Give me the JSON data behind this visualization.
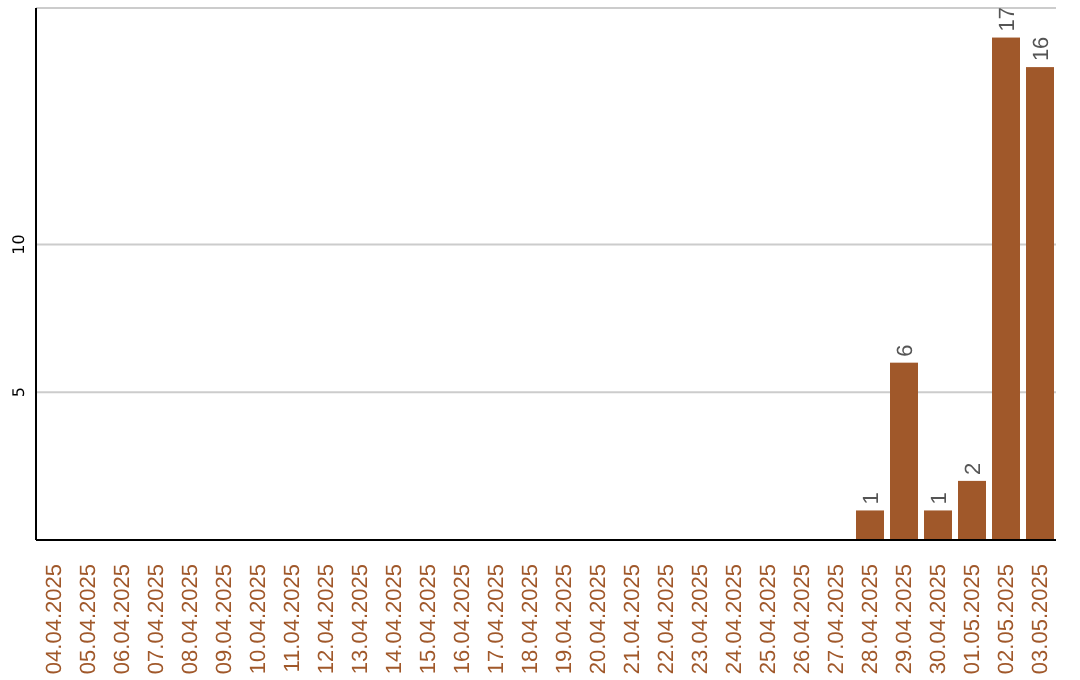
{
  "chart_data": {
    "type": "bar",
    "categories": [
      "04.04.2025",
      "05.04.2025",
      "06.04.2025",
      "07.04.2025",
      "08.04.2025",
      "09.04.2025",
      "10.04.2025",
      "11.04.2025",
      "12.04.2025",
      "13.04.2025",
      "14.04.2025",
      "15.04.2025",
      "16.04.2025",
      "17.04.2025",
      "18.04.2025",
      "19.04.2025",
      "20.04.2025",
      "21.04.2025",
      "22.04.2025",
      "23.04.2025",
      "24.04.2025",
      "25.04.2025",
      "26.04.2025",
      "27.04.2025",
      "28.04.2025",
      "29.04.2025",
      "30.04.2025",
      "01.05.2025",
      "02.05.2025",
      "03.05.2025"
    ],
    "values": [
      0,
      0,
      0,
      0,
      0,
      0,
      0,
      0,
      0,
      0,
      0,
      0,
      0,
      0,
      0,
      0,
      0,
      0,
      0,
      0,
      0,
      0,
      0,
      0,
      1,
      6,
      1,
      2,
      17,
      16
    ],
    "value_labels": [
      null,
      null,
      null,
      null,
      null,
      null,
      null,
      null,
      null,
      null,
      null,
      null,
      null,
      null,
      null,
      null,
      null,
      null,
      null,
      null,
      null,
      null,
      null,
      null,
      "1",
      "6",
      "1",
      "2",
      "17",
      "16"
    ],
    "color": "#a0582a",
    "ylim": [
      0,
      18
    ],
    "yticks": [
      5,
      10
    ],
    "grid": "y"
  }
}
